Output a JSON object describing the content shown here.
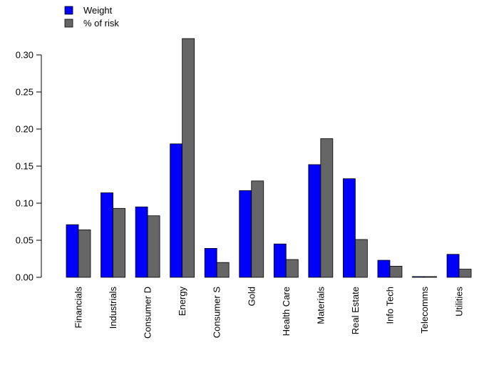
{
  "chart_data": {
    "type": "bar",
    "title": "",
    "xlabel": "",
    "ylabel": "",
    "ylim": [
      0,
      0.33
    ],
    "yticks": [
      "0.00",
      "0.05",
      "0.10",
      "0.15",
      "0.20",
      "0.25",
      "0.30"
    ],
    "grid": false,
    "legend_position": "top-left",
    "categories": [
      "Financials",
      "Industrials",
      "Consumer D",
      "Energy",
      "Consumer S",
      "Gold",
      "Health Care",
      "Materials",
      "Real Estate",
      "Info Tech",
      "Telecomms",
      "Utilities"
    ],
    "series": [
      {
        "name": "Weight",
        "color": "#0000ff",
        "values": [
          0.071,
          0.114,
          0.095,
          0.18,
          0.039,
          0.117,
          0.045,
          0.152,
          0.133,
          0.023,
          0.001,
          0.031
        ]
      },
      {
        "name": "% of risk",
        "color": "#666666",
        "values": [
          0.064,
          0.093,
          0.083,
          0.322,
          0.02,
          0.13,
          0.024,
          0.187,
          0.051,
          0.015,
          0.001,
          0.011
        ]
      }
    ]
  }
}
